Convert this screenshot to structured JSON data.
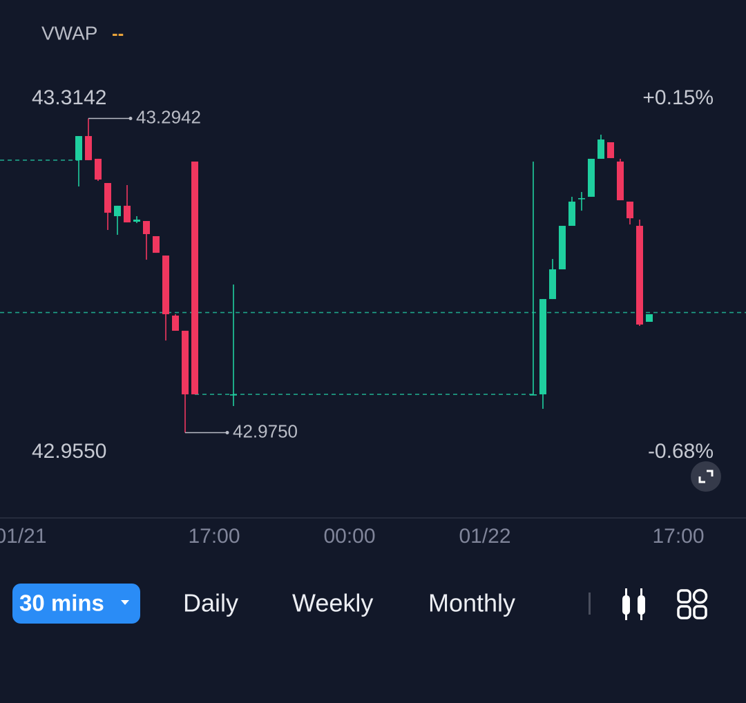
{
  "legend": {
    "label": "VWAP",
    "symbol": "--",
    "color": "#e8a23a"
  },
  "chart_data": {
    "type": "candlestick",
    "up_color": "#1fcf9f",
    "down_color": "#f0375f",
    "x": [
      10.0,
      10.5,
      11.0,
      11.5,
      12.0,
      12.5,
      13.0,
      13.5,
      14.0,
      14.5,
      15.0,
      15.5,
      16.0,
      18.0,
      33.5,
      34.0,
      34.5,
      35.0,
      35.5,
      36.0,
      36.5,
      37.0,
      37.5,
      38.0,
      38.5,
      39.0,
      39.5
    ],
    "open": [
      43.2518,
      43.2763,
      43.2532,
      43.2286,
      43.1949,
      43.2055,
      43.1893,
      43.19,
      43.1746,
      43.1549,
      43.0939,
      43.0785,
      43.2504,
      43.0139,
      43.0139,
      43.0139,
      43.1107,
      43.1409,
      43.1851,
      43.2132,
      43.2146,
      43.2532,
      43.27,
      43.2504,
      43.2097,
      43.1851,
      43.0876
    ],
    "high": [
      43.2763,
      43.2942,
      43.2532,
      43.2286,
      43.2055,
      43.2265,
      43.1949,
      43.19,
      43.1746,
      43.1549,
      43.0953,
      43.0785,
      43.2504,
      43.1255,
      43.2504,
      43.1107,
      43.1514,
      43.1851,
      43.2146,
      43.2195,
      43.2532,
      43.2777,
      43.27,
      43.2532,
      43.2097,
      43.1914,
      43.0953
    ],
    "low": [
      43.2251,
      43.2518,
      43.2307,
      43.1809,
      43.176,
      43.1886,
      43.1879,
      43.1507,
      43.1577,
      43.0686,
      43.0785,
      42.975,
      43.0139,
      43.002,
      43.0139,
      42.9992,
      43.1107,
      43.1409,
      43.1851,
      43.2005,
      43.2146,
      43.2532,
      43.2539,
      43.2111,
      43.1865,
      43.0834,
      43.0876
    ],
    "close": [
      43.2763,
      43.2518,
      43.2321,
      43.1984,
      43.2055,
      43.1886,
      43.1914,
      43.1767,
      43.1577,
      43.0953,
      43.0785,
      43.0139,
      43.0139,
      43.0139,
      43.0139,
      43.1107,
      43.1409,
      43.1851,
      43.2097,
      43.2132,
      43.2532,
      43.2728,
      43.2539,
      43.2111,
      43.1928,
      43.0848,
      43.0953
    ],
    "xlim": [
      5.93,
      44.5
    ],
    "xticks": [
      {
        "value": 7,
        "label": "01/21"
      },
      {
        "value": 17,
        "label": "17:00"
      },
      {
        "value": 24,
        "label": "00:00"
      },
      {
        "value": 31,
        "label": "01/22"
      },
      {
        "value": 41,
        "label": "17:00"
      }
    ],
    "ylim": [
      42.955,
      43.3142
    ],
    "yticks": [
      43.3142,
      {
        "value": 42.955,
        "label": "42.9550"
      }
    ],
    "y2lim": [
      -0.68,
      0.15
    ],
    "y2ticks": [
      {
        "value": 0.15,
        "label": "+0.15%"
      },
      {
        "value": -0.68,
        "label": "-0.68%"
      }
    ],
    "reference_lines": [
      {
        "value": 43.2518,
        "from": 5.93,
        "to": 10.0
      },
      {
        "value": 43.097,
        "from": 5.93,
        "to": 44.5
      },
      {
        "value": 43.0139,
        "from": 16.0,
        "to": 33.5
      }
    ],
    "reference_color": "#1fa58a",
    "annotations": [
      {
        "x": 10.5,
        "y": 43.2942
      },
      {
        "x": 15.5,
        "y": {
          "value": 42.975,
          "label": "42.9750"
        }
      }
    ]
  },
  "toolbar": {
    "intervals": [
      "30 mins",
      "Daily",
      "Weekly",
      "Monthly"
    ],
    "selected": 0
  }
}
